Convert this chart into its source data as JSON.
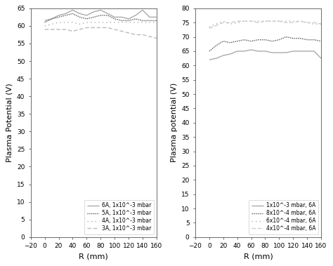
{
  "left": {
    "ylabel": "Plasma Potential (V)",
    "xlabel": "R (mm)",
    "ylim": [
      0,
      65
    ],
    "xlim": [
      -20,
      160
    ],
    "yticks": [
      0,
      5,
      10,
      15,
      20,
      25,
      30,
      35,
      40,
      45,
      50,
      55,
      60,
      65
    ],
    "xticks": [
      -20,
      0,
      20,
      40,
      60,
      80,
      100,
      120,
      140,
      160
    ],
    "series": [
      {
        "label": "6A, 1x10^-3 mbar",
        "linestyle": "solid",
        "color": "#aaaaaa",
        "x": [
          0,
          10,
          20,
          30,
          40,
          50,
          60,
          70,
          80,
          90,
          100,
          110,
          120,
          130,
          140,
          150,
          160
        ],
        "y": [
          61.5,
          62.0,
          63.0,
          63.5,
          64.5,
          63.5,
          63.0,
          64.0,
          64.5,
          63.5,
          62.5,
          62.5,
          62.0,
          63.0,
          64.5,
          62.5,
          62.5
        ]
      },
      {
        "label": "5A, 1x10^-3 mbar",
        "linestyle": "densely_dotted",
        "color": "#555555",
        "x": [
          0,
          10,
          20,
          30,
          40,
          50,
          60,
          70,
          80,
          90,
          100,
          110,
          120,
          130,
          140,
          150,
          160
        ],
        "y": [
          61.0,
          62.0,
          62.5,
          63.0,
          63.5,
          62.5,
          62.0,
          62.5,
          63.0,
          63.0,
          62.0,
          61.5,
          61.5,
          62.0,
          61.5,
          61.5,
          61.5
        ]
      },
      {
        "label": "4A, 1x10^-3 mbar",
        "linestyle": "loosely_dotted",
        "color": "#aaaaaa",
        "x": [
          0,
          10,
          20,
          30,
          40,
          50,
          60,
          70,
          80,
          90,
          100,
          110,
          120,
          130,
          140,
          150,
          160
        ],
        "y": [
          60.0,
          60.5,
          61.0,
          61.0,
          61.0,
          60.5,
          61.0,
          61.0,
          61.0,
          61.0,
          61.0,
          61.0,
          61.0,
          61.0,
          61.0,
          61.0,
          61.0
        ]
      },
      {
        "label": "3A, 1x10^-3 mbar",
        "linestyle": "dashed",
        "color": "#bbbbbb",
        "x": [
          0,
          10,
          20,
          30,
          40,
          50,
          60,
          70,
          80,
          90,
          100,
          110,
          120,
          130,
          140,
          150,
          160
        ],
        "y": [
          59.0,
          59.0,
          59.0,
          59.0,
          58.5,
          59.0,
          59.5,
          59.5,
          59.5,
          59.5,
          59.0,
          58.5,
          58.0,
          57.5,
          57.5,
          57.0,
          56.5
        ]
      }
    ]
  },
  "right": {
    "ylabel": "Plasma potential (V)",
    "xlabel": "R (mm)",
    "ylim": [
      0,
      80
    ],
    "xlim": [
      -20,
      160
    ],
    "yticks": [
      0,
      5,
      10,
      15,
      20,
      25,
      30,
      35,
      40,
      45,
      50,
      55,
      60,
      65,
      70,
      75,
      80
    ],
    "xticks": [
      -20,
      0,
      20,
      40,
      60,
      80,
      100,
      120,
      140,
      160
    ],
    "series": [
      {
        "label": "1x10^-3 mbar, 6A",
        "linestyle": "solid",
        "color": "#aaaaaa",
        "x": [
          0,
          10,
          20,
          30,
          40,
          50,
          60,
          70,
          80,
          90,
          100,
          110,
          120,
          130,
          140,
          150,
          160
        ],
        "y": [
          62.0,
          62.5,
          63.5,
          64.0,
          65.0,
          65.0,
          65.5,
          65.0,
          65.0,
          64.5,
          64.5,
          64.5,
          65.0,
          65.0,
          65.0,
          65.0,
          62.5
        ]
      },
      {
        "label": "8x10^-4 mbar, 6A",
        "linestyle": "densely_dotted",
        "color": "#555555",
        "x": [
          0,
          10,
          20,
          30,
          40,
          50,
          60,
          70,
          80,
          90,
          100,
          110,
          120,
          130,
          140,
          150,
          160
        ],
        "y": [
          65.0,
          67.0,
          68.5,
          68.0,
          68.5,
          69.0,
          68.5,
          69.0,
          69.0,
          68.5,
          69.0,
          70.0,
          69.5,
          69.5,
          69.0,
          69.0,
          68.5
        ]
      },
      {
        "label": "6x10^-4 mbar, 6A",
        "linestyle": "loosely_dotted",
        "color": "#aaaaaa",
        "x": [
          0,
          10,
          20,
          30,
          40,
          50,
          60,
          70,
          80,
          90,
          100,
          110,
          120,
          130,
          140,
          150,
          160
        ],
        "y": [
          73.5,
          74.5,
          75.5,
          74.5,
          75.0,
          75.5,
          75.5,
          75.5,
          75.5,
          75.5,
          75.5,
          75.5,
          75.5,
          75.5,
          75.0,
          74.5,
          74.5
        ]
      },
      {
        "label": "4x10^-4 mbar, 6A",
        "linestyle": "dashed",
        "color": "#cccccc",
        "x": [
          0,
          10,
          20,
          30,
          40,
          50,
          60,
          70,
          80,
          90,
          100,
          110,
          120,
          130,
          140,
          150,
          160
        ],
        "y": [
          73.0,
          74.0,
          75.0,
          75.0,
          75.5,
          75.5,
          75.5,
          75.0,
          75.5,
          75.5,
          75.5,
          75.0,
          75.0,
          75.5,
          75.0,
          75.0,
          74.5
        ]
      }
    ]
  },
  "bg_color": "#ffffff",
  "tick_labelsize": 6.5,
  "axis_labelsize": 8,
  "legend_fontsize": 5.5
}
